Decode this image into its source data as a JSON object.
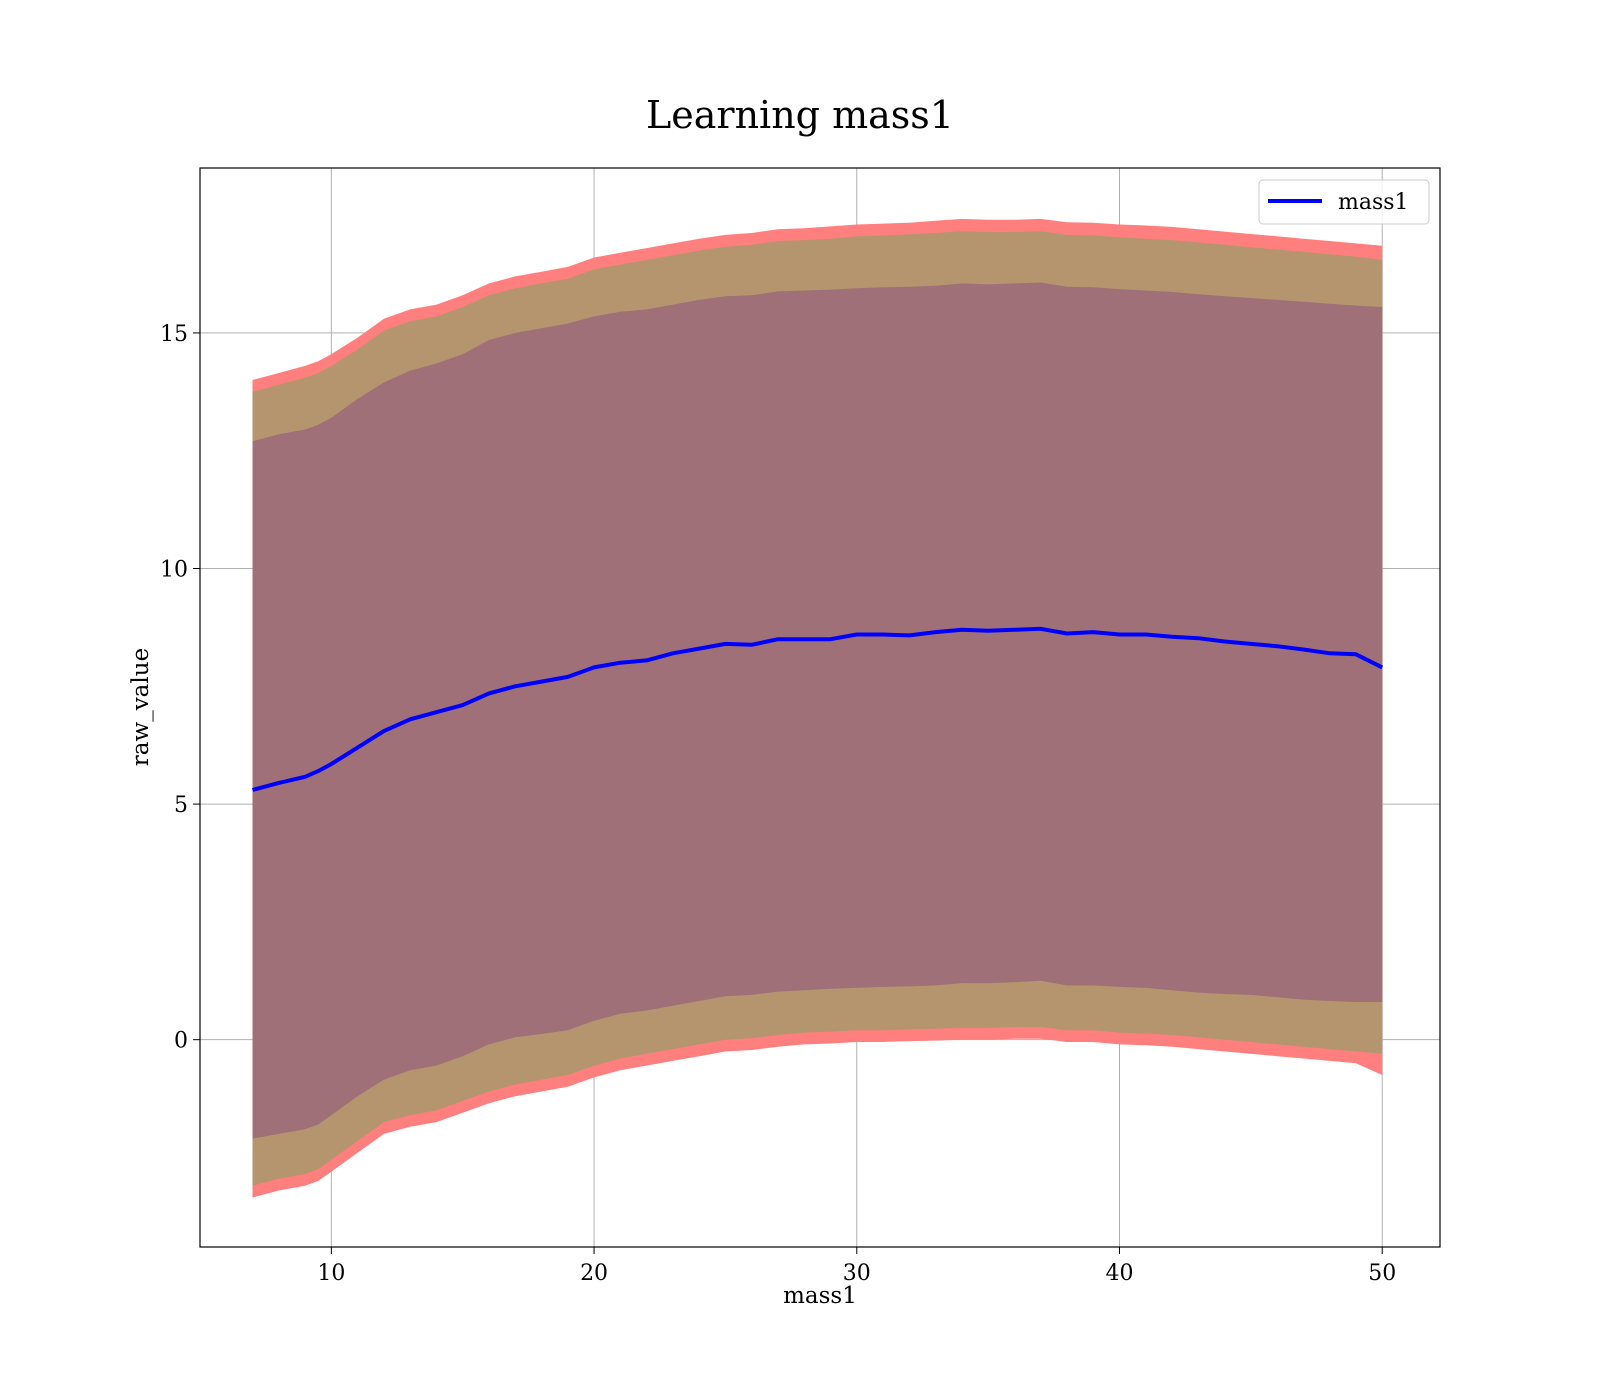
{
  "chart_data": {
    "type": "line",
    "title": "Learning mass1",
    "xlabel": "mass1",
    "ylabel": "raw_value",
    "xlim": [
      5,
      52.2
    ],
    "ylim": [
      -4.4,
      18.5
    ],
    "xticks": [
      10,
      20,
      30,
      40,
      50
    ],
    "yticks": [
      0,
      5,
      10,
      15
    ],
    "grid": true,
    "legend_position": "top-right",
    "series": [
      {
        "name": "mass1",
        "color": "#0000ff",
        "x": [
          7,
          8,
          9,
          9.5,
          10,
          11,
          12,
          13,
          14,
          15,
          16,
          17,
          18,
          19,
          20,
          21,
          22,
          23,
          24,
          25,
          26,
          27,
          28,
          29,
          30,
          31,
          32,
          33,
          34,
          35,
          36,
          37,
          38,
          39,
          40,
          41,
          42,
          43,
          44,
          45,
          46,
          47,
          48,
          49,
          50
        ],
        "y": [
          5.3,
          5.45,
          5.58,
          5.7,
          5.85,
          6.2,
          6.55,
          6.8,
          6.95,
          7.1,
          7.35,
          7.5,
          7.6,
          7.7,
          7.9,
          8.0,
          8.05,
          8.2,
          8.3,
          8.4,
          8.38,
          8.5,
          8.5,
          8.5,
          8.6,
          8.6,
          8.58,
          8.65,
          8.7,
          8.68,
          8.7,
          8.72,
          8.62,
          8.65,
          8.6,
          8.6,
          8.55,
          8.52,
          8.45,
          8.4,
          8.35,
          8.28,
          8.2,
          8.18,
          7.9
        ]
      }
    ],
    "bands": [
      {
        "color": "#ff7f7f",
        "x": [
          7,
          8,
          9,
          9.5,
          10,
          11,
          12,
          13,
          14,
          15,
          16,
          17,
          18,
          19,
          20,
          21,
          22,
          23,
          24,
          25,
          26,
          27,
          28,
          29,
          30,
          31,
          32,
          33,
          34,
          35,
          36,
          37,
          38,
          39,
          40,
          41,
          42,
          43,
          44,
          45,
          46,
          47,
          48,
          49,
          50
        ],
        "upper": [
          14.0,
          14.15,
          14.3,
          14.4,
          14.55,
          14.9,
          15.3,
          15.5,
          15.6,
          15.8,
          16.05,
          16.2,
          16.3,
          16.4,
          16.6,
          16.7,
          16.8,
          16.9,
          17.0,
          17.08,
          17.12,
          17.2,
          17.22,
          17.26,
          17.3,
          17.32,
          17.34,
          17.38,
          17.42,
          17.4,
          17.4,
          17.42,
          17.35,
          17.34,
          17.3,
          17.28,
          17.25,
          17.2,
          17.15,
          17.1,
          17.05,
          17.0,
          16.95,
          16.9,
          16.85
        ],
        "lower": [
          -3.35,
          -3.2,
          -3.1,
          -3.0,
          -2.8,
          -2.4,
          -2.0,
          -1.85,
          -1.75,
          -1.55,
          -1.35,
          -1.2,
          -1.1,
          -1.0,
          -0.8,
          -0.65,
          -0.55,
          -0.45,
          -0.35,
          -0.25,
          -0.22,
          -0.15,
          -0.1,
          -0.08,
          -0.05,
          -0.05,
          -0.03,
          -0.02,
          0.0,
          0.0,
          0.02,
          0.02,
          -0.05,
          -0.05,
          -0.1,
          -0.12,
          -0.15,
          -0.2,
          -0.25,
          -0.3,
          -0.35,
          -0.4,
          -0.45,
          -0.5,
          -0.75
        ]
      },
      {
        "color": "#b5956e",
        "x": [
          7,
          8,
          9,
          9.5,
          10,
          11,
          12,
          13,
          14,
          15,
          16,
          17,
          18,
          19,
          20,
          21,
          22,
          23,
          24,
          25,
          26,
          27,
          28,
          29,
          30,
          31,
          32,
          33,
          34,
          35,
          36,
          37,
          38,
          39,
          40,
          41,
          42,
          43,
          44,
          45,
          46,
          47,
          48,
          49,
          50
        ],
        "upper": [
          13.75,
          13.9,
          14.05,
          14.15,
          14.3,
          14.65,
          15.05,
          15.25,
          15.35,
          15.55,
          15.8,
          15.95,
          16.05,
          16.15,
          16.35,
          16.45,
          16.55,
          16.65,
          16.75,
          16.83,
          16.87,
          16.95,
          16.97,
          17.0,
          17.05,
          17.07,
          17.09,
          17.12,
          17.16,
          17.14,
          17.14,
          17.16,
          17.08,
          17.07,
          17.03,
          17.0,
          16.97,
          16.92,
          16.87,
          16.82,
          16.77,
          16.72,
          16.67,
          16.62,
          16.55
        ],
        "lower": [
          -3.1,
          -2.95,
          -2.85,
          -2.75,
          -2.55,
          -2.15,
          -1.75,
          -1.6,
          -1.5,
          -1.3,
          -1.1,
          -0.95,
          -0.85,
          -0.75,
          -0.55,
          -0.4,
          -0.3,
          -0.2,
          -0.1,
          0.0,
          0.03,
          0.1,
          0.15,
          0.17,
          0.2,
          0.2,
          0.22,
          0.23,
          0.25,
          0.25,
          0.27,
          0.27,
          0.2,
          0.2,
          0.15,
          0.13,
          0.1,
          0.05,
          0.0,
          -0.05,
          -0.1,
          -0.15,
          -0.2,
          -0.25,
          -0.3
        ]
      },
      {
        "color": "#a07078",
        "x": [
          7,
          8,
          9,
          9.5,
          10,
          11,
          12,
          13,
          14,
          15,
          16,
          17,
          18,
          19,
          20,
          21,
          22,
          23,
          24,
          25,
          26,
          27,
          28,
          29,
          30,
          31,
          32,
          33,
          34,
          35,
          36,
          37,
          38,
          39,
          40,
          41,
          42,
          43,
          44,
          45,
          46,
          47,
          48,
          49,
          50
        ],
        "upper": [
          12.7,
          12.85,
          12.95,
          13.05,
          13.2,
          13.6,
          13.95,
          14.2,
          14.35,
          14.55,
          14.85,
          15.0,
          15.1,
          15.2,
          15.35,
          15.45,
          15.5,
          15.6,
          15.7,
          15.78,
          15.8,
          15.88,
          15.9,
          15.92,
          15.95,
          15.97,
          15.98,
          16.0,
          16.05,
          16.03,
          16.05,
          16.07,
          15.98,
          15.97,
          15.93,
          15.9,
          15.87,
          15.82,
          15.78,
          15.74,
          15.7,
          15.66,
          15.62,
          15.58,
          15.55
        ],
        "lower": [
          -2.1,
          -2.0,
          -1.9,
          -1.8,
          -1.6,
          -1.2,
          -0.85,
          -0.65,
          -0.55,
          -0.35,
          -0.1,
          0.05,
          0.12,
          0.2,
          0.4,
          0.55,
          0.62,
          0.72,
          0.82,
          0.92,
          0.95,
          1.02,
          1.05,
          1.08,
          1.1,
          1.12,
          1.13,
          1.15,
          1.2,
          1.2,
          1.22,
          1.25,
          1.15,
          1.15,
          1.12,
          1.1,
          1.05,
          1.0,
          0.97,
          0.95,
          0.9,
          0.85,
          0.82,
          0.8,
          0.8
        ]
      }
    ]
  }
}
